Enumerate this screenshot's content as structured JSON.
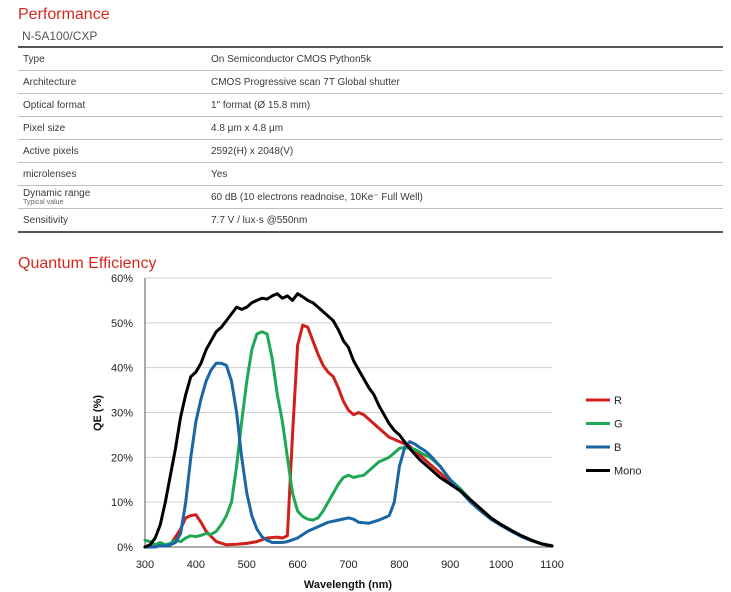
{
  "performance": {
    "title": "Performance",
    "model": "N-5A100/CXP",
    "specs": [
      {
        "key": "Type",
        "value": "On Semiconductor CMOS Python5k"
      },
      {
        "key": "Architecture",
        "value": "CMOS Progressive scan 7T Global shutter"
      },
      {
        "key": "Optical format",
        "value": "1\" format (Ø 15.8 mm)"
      },
      {
        "key": "Pixel size",
        "value": "4.8 μm x 4.8 μm"
      },
      {
        "key": "Active pixels",
        "value": "2592(H) x 2048(V)"
      },
      {
        "key": "microlenses",
        "value": "Yes"
      },
      {
        "key": "Dynamic range",
        "sub": "Typical value",
        "value": "60 dB (10 electrons readnoise, 10Ke⁻ Full Well)"
      },
      {
        "key": "Sensitivity",
        "value": "7.7 V / lux·s @550nm"
      }
    ]
  },
  "qe_section": {
    "title": "Quantum  Efficiency"
  },
  "chart_data": {
    "type": "line",
    "title": "",
    "xlabel": "Wavelength (nm)",
    "ylabel": "QE (%)",
    "xlim": [
      300,
      1100
    ],
    "ylim": [
      0,
      60
    ],
    "xticks": [
      "300",
      "400",
      "500",
      "600",
      "700",
      "800",
      "900",
      "1000",
      "1100"
    ],
    "yticks": [
      "0%",
      "10%",
      "20%",
      "30%",
      "40%",
      "50%",
      "60%"
    ],
    "grid": "horizontal",
    "legend_position": "right",
    "series": [
      {
        "name": "R",
        "color": "#d0201c",
        "x": [
          300,
          330,
          350,
          370,
          380,
          390,
          400,
          410,
          420,
          440,
          460,
          480,
          500,
          520,
          540,
          560,
          570,
          580,
          590,
          600,
          610,
          620,
          630,
          640,
          650,
          660,
          670,
          680,
          690,
          700,
          710,
          720,
          730,
          740,
          750,
          760,
          770,
          780,
          790,
          800,
          820,
          840,
          860,
          880,
          900,
          920,
          940,
          960,
          980,
          1000,
          1020,
          1040,
          1060,
          1080,
          1100
        ],
        "y": [
          0,
          0.3,
          0.5,
          4,
          6.5,
          7,
          7.2,
          5.5,
          3.5,
          1.2,
          0.5,
          0.6,
          0.8,
          1.2,
          2,
          2.2,
          2,
          2.5,
          25,
          45,
          49.5,
          49,
          46,
          43,
          40.5,
          39,
          38,
          35.5,
          32.5,
          30.5,
          29.5,
          30,
          29.5,
          28.5,
          27.5,
          26.5,
          25.5,
          24.5,
          24,
          23.5,
          22.5,
          20.5,
          18.5,
          16.5,
          14.5,
          12.5,
          10.3,
          8.3,
          6.5,
          5,
          3.7,
          2.5,
          1.5,
          0.7,
          0.3
        ]
      },
      {
        "name": "G",
        "color": "#1ea854",
        "x": [
          300,
          310,
          320,
          330,
          340,
          350,
          360,
          370,
          380,
          390,
          400,
          410,
          420,
          430,
          440,
          450,
          460,
          470,
          480,
          490,
          500,
          510,
          520,
          530,
          540,
          550,
          560,
          570,
          580,
          590,
          600,
          610,
          620,
          630,
          640,
          650,
          660,
          670,
          680,
          690,
          700,
          710,
          720,
          730,
          740,
          750,
          760,
          770,
          780,
          790,
          800,
          810,
          820,
          830,
          840,
          850,
          860,
          880,
          900,
          920,
          940,
          960,
          980,
          1000,
          1020,
          1040,
          1060,
          1080,
          1100
        ],
        "y": [
          1.5,
          1.2,
          0.5,
          1,
          0.5,
          0.8,
          1.5,
          1.2,
          2,
          2.5,
          2.3,
          2.6,
          3,
          2.8,
          3.5,
          5,
          7,
          10,
          18,
          28,
          37,
          44,
          47.5,
          48,
          47.5,
          42,
          34,
          28,
          20,
          12,
          8,
          6.8,
          6.2,
          6,
          6.5,
          8,
          10,
          12,
          14,
          15.5,
          16,
          15.5,
          15.8,
          16,
          17,
          18,
          19,
          19.5,
          20,
          21,
          22,
          22.2,
          22,
          21.8,
          21.2,
          20.5,
          20,
          18,
          15,
          13,
          10.5,
          8.5,
          6.5,
          5,
          3.7,
          2.5,
          1.5,
          0.7,
          0.3
        ]
      },
      {
        "name": "B",
        "color": "#1a66a6",
        "x": [
          300,
          320,
          330,
          340,
          350,
          360,
          370,
          380,
          390,
          400,
          410,
          420,
          430,
          440,
          450,
          460,
          470,
          480,
          490,
          500,
          510,
          520,
          530,
          540,
          550,
          560,
          570,
          580,
          590,
          600,
          620,
          640,
          660,
          680,
          700,
          710,
          720,
          740,
          760,
          780,
          790,
          800,
          810,
          820,
          830,
          840,
          850,
          860,
          880,
          900,
          920,
          940,
          960,
          980,
          1000,
          1020,
          1040,
          1060,
          1080,
          1100
        ],
        "y": [
          0,
          0,
          0.3,
          0.2,
          0.5,
          1,
          3,
          10,
          20,
          28,
          33,
          37,
          39.5,
          41,
          41,
          40.5,
          37,
          30,
          20,
          12,
          7,
          4,
          2.3,
          1.5,
          1,
          1,
          1,
          1.2,
          1.6,
          2,
          3.5,
          4.5,
          5.5,
          6,
          6.5,
          6.2,
          5.5,
          5.3,
          6,
          7,
          10,
          18,
          22,
          23.5,
          23,
          22.2,
          21.5,
          20.5,
          18,
          15,
          12.5,
          10,
          8,
          6.2,
          4.8,
          3.5,
          2.3,
          1.4,
          0.7,
          0.3
        ]
      },
      {
        "name": "Mono",
        "color": "#000000",
        "x": [
          300,
          310,
          320,
          330,
          340,
          350,
          360,
          370,
          380,
          390,
          400,
          410,
          420,
          430,
          440,
          450,
          460,
          470,
          480,
          490,
          500,
          510,
          520,
          530,
          540,
          550,
          560,
          570,
          580,
          590,
          600,
          610,
          620,
          630,
          640,
          650,
          660,
          670,
          680,
          690,
          700,
          710,
          720,
          730,
          740,
          750,
          760,
          770,
          780,
          790,
          800,
          820,
          840,
          860,
          880,
          900,
          920,
          940,
          960,
          980,
          1000,
          1020,
          1040,
          1060,
          1080,
          1100
        ],
        "y": [
          0,
          0.5,
          2,
          5,
          10,
          16,
          22,
          29,
          34,
          38,
          39,
          41,
          44,
          46,
          48,
          49,
          50.5,
          52,
          53.5,
          53,
          53.5,
          54.5,
          55,
          55.5,
          55.3,
          56,
          56.5,
          55.5,
          56,
          55,
          56.5,
          55.8,
          55,
          54.5,
          53.5,
          52.5,
          51.5,
          50.5,
          48.5,
          46,
          44.5,
          41.5,
          39.5,
          37.5,
          35.5,
          34,
          31.5,
          29.5,
          27.5,
          26,
          25,
          22,
          19.5,
          17.5,
          15.5,
          14,
          12.5,
          10.5,
          8.5,
          6.5,
          5,
          3.7,
          2.5,
          1.5,
          0.7,
          0.2
        ]
      }
    ]
  }
}
